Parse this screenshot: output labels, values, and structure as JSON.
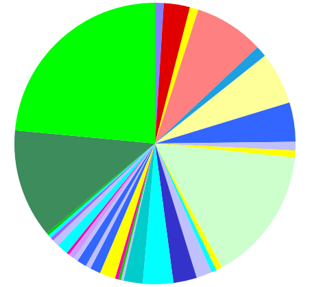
{
  "chart_data": {
    "type": "pie",
    "values": [
      1,
      3,
      1,
      8,
      1.3,
      6,
      4.5,
      1,
      0.8,
      15.5,
      0.7,
      0.6,
      1.8,
      2.7,
      3.5,
      2.2,
      0.3,
      0.3,
      0.4,
      1.8,
      1.2,
      0.6,
      1.1,
      0.5,
      0.7,
      0.3,
      1.3,
      0.8,
      0.4,
      0.4,
      0.3,
      12.5,
      23.5
    ],
    "colors": [
      "#8080ff",
      "#e00000",
      "#ffff00",
      "#ff8080",
      "#1ea0e0",
      "#ffff99",
      "#3366ff",
      "#c0c0ff",
      "#ffff00",
      "#ccffcc",
      "#ffff00",
      "#00ffff",
      "#c0c0ff",
      "#3333cc",
      "#00ffff",
      "#00cccc",
      "#c0c0ff",
      "#00cc00",
      "#ff00aa",
      "#ffff00",
      "#3366ff",
      "#c0c0ff",
      "#3366ff",
      "#c0c0ff",
      "#cc99ff",
      "#ff00aa",
      "#00ffff",
      "#c0c0ff",
      "#9966ff",
      "#00ffff",
      "#00cc00",
      "#3c8c5c",
      "#00ff00"
    ],
    "data_labels": false
  }
}
